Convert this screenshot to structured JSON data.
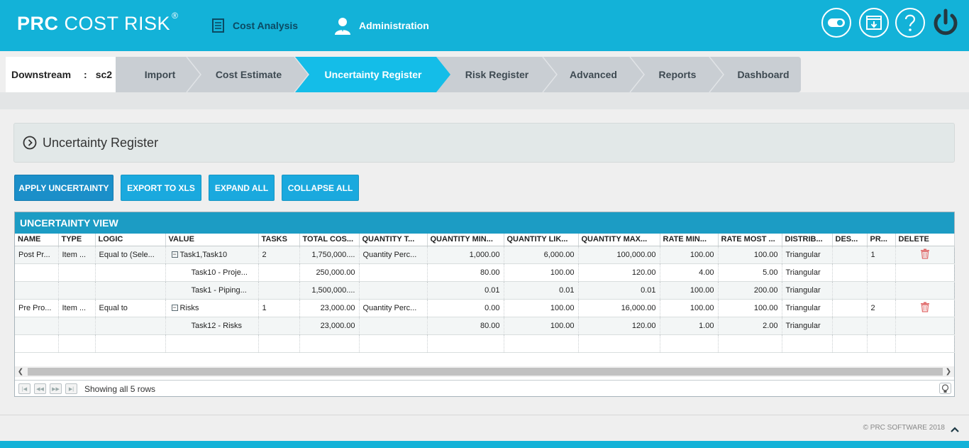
{
  "header": {
    "brand_bold": "PRC",
    "brand_rest": "COST RISK",
    "brand_reg": "®",
    "nav": {
      "cost_analysis": "Cost Analysis",
      "administration": "Administration"
    },
    "icons": [
      "toggle-icon",
      "download-window-icon",
      "help-icon",
      "power-icon"
    ]
  },
  "project": {
    "name": "Downstream",
    "separator": ":",
    "scenario": "sc2"
  },
  "steps": {
    "import": "Import",
    "cost_estimate": "Cost Estimate",
    "uncertainty_register": "Uncertainty Register",
    "risk_register": "Risk Register",
    "advanced": "Advanced",
    "reports": "Reports",
    "dashboard": "Dashboard",
    "active": "Uncertainty Register"
  },
  "panel": {
    "title": "Uncertainty Register"
  },
  "toolbar": {
    "apply": "APPLY UNCERTAINTY",
    "export": "EXPORT TO XLS",
    "expand": "EXPAND ALL",
    "collapse": "COLLAPSE ALL"
  },
  "grid": {
    "caption": "UNCERTAINTY VIEW",
    "columns": [
      "NAME",
      "TYPE",
      "LOGIC",
      "VALUE",
      "TASKS",
      "TOTAL COS...",
      "QUANTITY T...",
      "QUANTITY MIN...",
      "QUANTITY LIK...",
      "QUANTITY MAX...",
      "RATE MIN...",
      "RATE MOST ...",
      "DISTRIB...",
      "DES...",
      "PR...",
      "DELETE"
    ],
    "rows": [
      [
        "Post Pr...",
        "Item ...",
        "Equal to (Sele...",
        "Task1,Task10",
        "2",
        "1,750,000....",
        "Quantity Perc...",
        "1,000.00",
        "6,000.00",
        "100,000.00",
        "100.00",
        "100.00",
        "Triangular",
        "",
        "1",
        ""
      ],
      [
        "",
        "",
        "",
        "Task10 - Proje...",
        "",
        "250,000.00",
        "",
        "80.00",
        "100.00",
        "120.00",
        "4.00",
        "5.00",
        "Triangular",
        "",
        "",
        ""
      ],
      [
        "",
        "",
        "",
        "Task1 - Piping...",
        "",
        "1,500,000....",
        "",
        "0.01",
        "0.01",
        "0.01",
        "100.00",
        "200.00",
        "Triangular",
        "",
        "",
        ""
      ],
      [
        "Pre Pro...",
        "Item ...",
        "Equal to",
        "Risks",
        "1",
        "23,000.00",
        "Quantity Perc...",
        "0.00",
        "100.00",
        "16,000.00",
        "100.00",
        "100.00",
        "Triangular",
        "",
        "2",
        ""
      ],
      [
        "",
        "",
        "",
        "Task12 - Risks",
        "",
        "23,000.00",
        "",
        "80.00",
        "100.00",
        "120.00",
        "1.00",
        "2.00",
        "Triangular",
        "",
        "",
        ""
      ],
      [
        "",
        "",
        "",
        "",
        "",
        "",
        "",
        "",
        "",
        "",
        "",
        "",
        "",
        "",
        "",
        ""
      ]
    ],
    "pager_info": "Showing all 5 rows"
  },
  "footer": {
    "copyright": "© PRC SOFTWARE 2018"
  }
}
